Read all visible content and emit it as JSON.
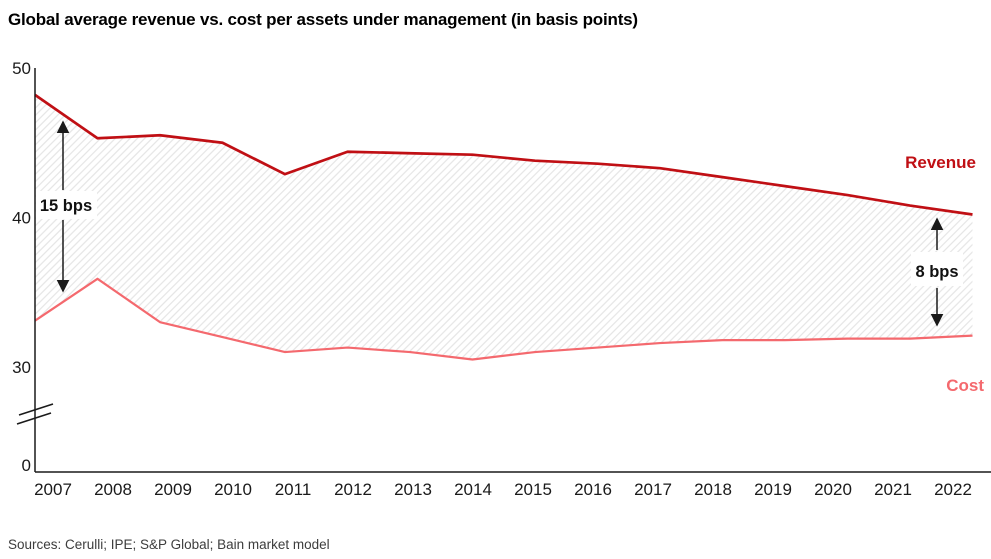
{
  "page": {
    "title": "Global average revenue vs. cost per assets under management (in basis points)",
    "sources": "Sources: Cerulli; IPE; S&P Global; Bain market model"
  },
  "chart_data": {
    "type": "line",
    "title": "Global average revenue vs. cost per assets under management (in basis points)",
    "unit": "basis points",
    "x": [
      2007,
      2008,
      2009,
      2010,
      2011,
      2012,
      2013,
      2014,
      2015,
      2016,
      2017,
      2018,
      2019,
      2020,
      2021,
      2022
    ],
    "series": [
      {
        "name": "Revenue",
        "color": "#c00f14",
        "values": [
          48.2,
          45.3,
          45.5,
          45.0,
          42.9,
          44.4,
          44.3,
          44.2,
          43.8,
          43.6,
          43.3,
          42.7,
          42.1,
          41.5,
          40.8,
          40.2
        ]
      },
      {
        "name": "Cost",
        "color": "#f4696e",
        "values": [
          33.1,
          35.9,
          33.0,
          32.0,
          31.0,
          31.3,
          31.0,
          30.5,
          31.0,
          31.3,
          31.6,
          31.8,
          31.8,
          31.9,
          31.9,
          32.1
        ]
      }
    ],
    "y_ticks": [
      50,
      40,
      30,
      0
    ],
    "y_axis_break": true,
    "ylim_visible": [
      30,
      50
    ],
    "grid": false,
    "area_fill": "hatched-diagonal",
    "hatch_color": "#e3e3e3",
    "annotations": [
      {
        "label": "15 bps",
        "near_x": 2007,
        "between": [
          "Revenue",
          "Cost"
        ]
      },
      {
        "label": "8 bps",
        "near_x": 2021,
        "between": [
          "Revenue",
          "Cost"
        ]
      }
    ],
    "legend_position": "inline-right"
  }
}
